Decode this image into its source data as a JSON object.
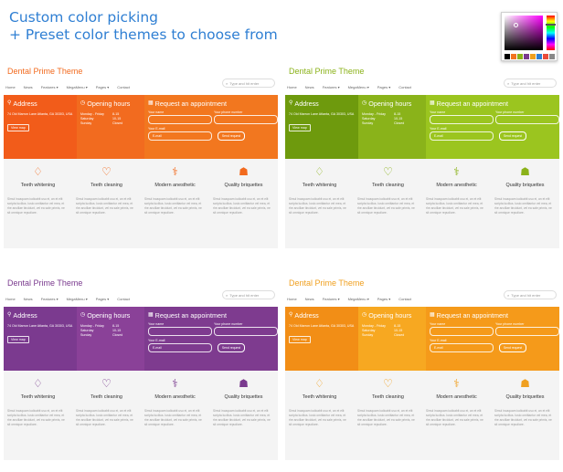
{
  "headline": {
    "line1": "Custom color picking",
    "line2": "+ Preset color themes to choose from"
  },
  "picker": {
    "base_hue": "#ff00ff",
    "swatches": [
      "#000000",
      "#f27420",
      "#8bb21a",
      "#7a3a8e",
      "#f0a020",
      "#2f7fd3",
      "#e94b3c",
      "#888888"
    ]
  },
  "panel_common": {
    "title": "Dental Prime Theme",
    "nav": [
      "Home",
      "News",
      "Features ▾",
      "MegaMenu ▾",
      "Pages ▾",
      "Contact"
    ],
    "search_placeholder": "Type and hit enter",
    "address_heading": "Address",
    "address_text": "74 Old Marron Lane Atlanta, GA 30303, USA",
    "map_button": "View map",
    "hours_heading": "Opening hours",
    "hours": [
      [
        "Monday - Friday",
        "8-15"
      ],
      [
        "Saturday",
        "10-15"
      ],
      [
        "Sunday",
        "Closed"
      ]
    ],
    "appointment_heading": "Request an appointment",
    "name_label": "Your name",
    "phone_label": "Your phone number",
    "email_label": "Your E-mail",
    "email_placeholder": "E-mail",
    "send_button": "Send request",
    "features": [
      {
        "icon": "diamond-icon",
        "glyph": "♢",
        "label": "Teeth whitening"
      },
      {
        "icon": "heart-icon",
        "glyph": "♡",
        "label": "Teeth cleaning"
      },
      {
        "icon": "stethoscope-icon",
        "glyph": "⚕",
        "label": "Modern anesthetic"
      },
      {
        "icon": "doctor-icon",
        "glyph": "☗",
        "label": "Quality briquettes"
      }
    ],
    "feature_text": "Simul incaquam iudicabit usu ei, an et elit scripta lucilius. Iusto omittantur vel mea, et rhe ancillae tincidunt, vel ea sale primis, ne sit omnique repudiare."
  },
  "themes": [
    {
      "id": "orange",
      "title_color": "#f26a1e",
      "a": "#f25c1a",
      "b": "#f26b1f",
      "c": "#f2771f",
      "accent": "#f26a1e"
    },
    {
      "id": "green",
      "title_color": "#8bb21a",
      "a": "#6e9a0d",
      "b": "#8ab31a",
      "c": "#9bc51f",
      "accent": "#8bb21a"
    },
    {
      "id": "purple",
      "title_color": "#7a3a8e",
      "a": "#7b3a8f",
      "b": "#8a4198",
      "c": "#7e3b8f",
      "accent": "#7a3a8e"
    },
    {
      "id": "amber",
      "title_color": "#f0a020",
      "a": "#f28e16",
      "b": "#f7a821",
      "c": "#f59a1a",
      "accent": "#f0a020"
    }
  ]
}
